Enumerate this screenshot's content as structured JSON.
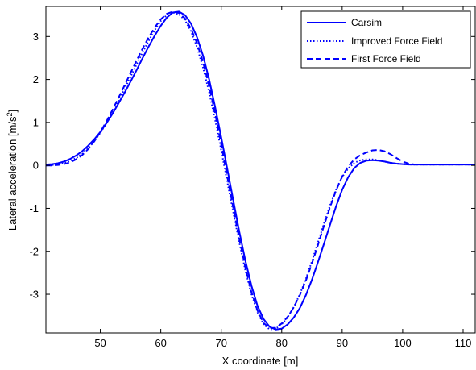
{
  "chart_data": {
    "type": "line",
    "xlabel": "X coordinate [m]",
    "ylabel_main": "Lateral acceleration [m/s",
    "ylabel_sup": "2",
    "ylabel_tail": "]",
    "xlim": [
      41,
      112
    ],
    "ylim": [
      -3.9,
      3.7
    ],
    "xticks": [
      50,
      60,
      70,
      80,
      90,
      100,
      110
    ],
    "yticks": [
      -3,
      -2,
      -1,
      0,
      1,
      2,
      3
    ],
    "grid": false,
    "legend_position": "top-right",
    "line_color": "#0000ff",
    "series": [
      {
        "name": "Carsim",
        "style": "solid",
        "x": [
          41,
          42,
          43,
          44,
          45,
          46,
          47,
          48,
          49,
          50,
          51,
          52,
          53,
          54,
          55,
          56,
          57,
          58,
          59,
          60,
          61,
          62,
          63,
          64,
          65,
          66,
          67,
          68,
          69,
          70,
          71,
          72,
          73,
          74,
          75,
          76,
          77,
          78,
          79,
          80,
          81,
          82,
          83,
          84,
          85,
          86,
          87,
          88,
          89,
          90,
          91,
          92,
          93,
          94,
          95,
          96,
          97,
          98,
          99,
          100,
          101,
          102,
          103,
          104,
          105,
          106,
          107,
          108,
          109,
          110,
          111,
          112
        ],
        "y": [
          0.02,
          0.03,
          0.05,
          0.09,
          0.15,
          0.23,
          0.33,
          0.46,
          0.61,
          0.78,
          0.98,
          1.2,
          1.44,
          1.69,
          1.95,
          2.22,
          2.5,
          2.77,
          3.02,
          3.25,
          3.44,
          3.56,
          3.58,
          3.5,
          3.3,
          2.98,
          2.55,
          2.0,
          1.35,
          0.65,
          -0.08,
          -0.82,
          -1.55,
          -2.22,
          -2.8,
          -3.27,
          -3.58,
          -3.76,
          -3.82,
          -3.8,
          -3.7,
          -3.54,
          -3.32,
          -3.02,
          -2.66,
          -2.25,
          -1.82,
          -1.38,
          -0.95,
          -0.57,
          -0.27,
          -0.06,
          0.06,
          0.11,
          0.12,
          0.11,
          0.09,
          0.06,
          0.04,
          0.03,
          0.02,
          0.02,
          0.02,
          0.02,
          0.02,
          0.02,
          0.02,
          0.02,
          0.02,
          0.02,
          0.02,
          0.02
        ]
      },
      {
        "name": "Improved Force Field",
        "style": "dotted",
        "x": [
          41,
          42,
          43,
          44,
          45,
          46,
          47,
          48,
          49,
          50,
          51,
          52,
          53,
          54,
          55,
          56,
          57,
          58,
          59,
          60,
          61,
          62,
          63,
          64,
          65,
          66,
          67,
          68,
          69,
          70,
          71,
          72,
          73,
          74,
          75,
          76,
          77,
          78,
          79,
          80,
          81,
          82,
          83,
          84,
          85,
          86,
          87,
          88,
          89,
          90,
          91,
          92,
          93,
          94,
          95,
          96,
          97,
          98,
          99,
          100,
          101,
          102,
          103,
          104,
          105,
          106,
          107,
          108,
          109,
          110,
          111,
          112
        ],
        "y": [
          0.0,
          0.01,
          0.02,
          0.05,
          0.1,
          0.17,
          0.27,
          0.4,
          0.56,
          0.76,
          0.98,
          1.23,
          1.5,
          1.78,
          2.06,
          2.35,
          2.63,
          2.9,
          3.15,
          3.36,
          3.5,
          3.56,
          3.52,
          3.38,
          3.12,
          2.75,
          2.27,
          1.7,
          1.05,
          0.35,
          -0.38,
          -1.1,
          -1.8,
          -2.45,
          -3.0,
          -3.42,
          -3.7,
          -3.82,
          -3.8,
          -3.7,
          -3.53,
          -3.3,
          -3.0,
          -2.64,
          -2.23,
          -1.79,
          -1.35,
          -0.93,
          -0.56,
          -0.27,
          -0.07,
          0.06,
          0.12,
          0.14,
          0.14,
          0.12,
          0.09,
          0.06,
          0.04,
          0.03,
          0.02,
          0.02,
          0.02,
          0.02,
          0.02,
          0.02,
          0.02,
          0.02,
          0.02,
          0.02,
          0.02,
          0.02
        ]
      },
      {
        "name": "First Force Field",
        "style": "dashed",
        "x": [
          41,
          42,
          43,
          44,
          45,
          46,
          47,
          48,
          49,
          50,
          51,
          52,
          53,
          54,
          55,
          56,
          57,
          58,
          59,
          60,
          61,
          62,
          63,
          64,
          65,
          66,
          67,
          68,
          69,
          70,
          71,
          72,
          73,
          74,
          75,
          76,
          77,
          78,
          79,
          80,
          81,
          82,
          83,
          84,
          85,
          86,
          87,
          88,
          89,
          90,
          91,
          92,
          93,
          94,
          95,
          96,
          97,
          98,
          99,
          100,
          101,
          102,
          103,
          104,
          105,
          106,
          107,
          108,
          109,
          110,
          111,
          112
        ],
        "y": [
          0.0,
          0.0,
          0.01,
          0.03,
          0.07,
          0.14,
          0.24,
          0.38,
          0.56,
          0.78,
          1.02,
          1.29,
          1.57,
          1.86,
          2.15,
          2.44,
          2.72,
          2.98,
          3.21,
          3.4,
          3.53,
          3.58,
          3.55,
          3.42,
          3.18,
          2.84,
          2.4,
          1.85,
          1.2,
          0.48,
          -0.26,
          -1.0,
          -1.72,
          -2.38,
          -2.95,
          -3.38,
          -3.67,
          -3.79,
          -3.78,
          -3.68,
          -3.52,
          -3.3,
          -3.02,
          -2.68,
          -2.28,
          -1.85,
          -1.4,
          -0.97,
          -0.58,
          -0.26,
          -0.02,
          0.14,
          0.24,
          0.3,
          0.35,
          0.36,
          0.33,
          0.26,
          0.17,
          0.09,
          0.04,
          0.02,
          0.02,
          0.02,
          0.02,
          0.02,
          0.02,
          0.02,
          0.02,
          0.02,
          0.02,
          0.02
        ]
      }
    ]
  }
}
